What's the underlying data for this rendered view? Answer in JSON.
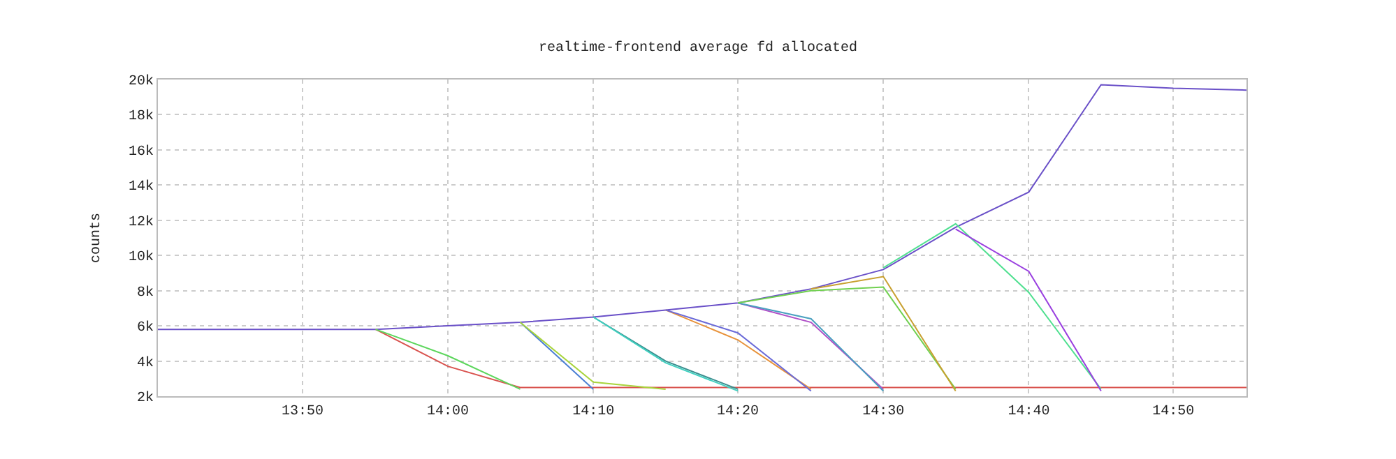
{
  "chart_data": {
    "type": "line",
    "title": "realtime-frontend average fd allocated",
    "ylabel": "counts",
    "x": [
      13.667,
      13.75,
      13.833,
      13.917,
      14,
      14.083,
      14.167,
      14.25,
      14.333,
      14.417,
      14.5,
      14.583,
      14.667,
      14.75,
      14.833,
      14.917
    ],
    "xlim": [
      13.667,
      14.917
    ],
    "xticks": [
      {
        "value": 13.833,
        "label": "13:50"
      },
      {
        "value": 14,
        "label": "14:00"
      },
      {
        "value": 14.167,
        "label": "14:10"
      },
      {
        "value": 14.333,
        "label": "14:20"
      },
      {
        "value": 14.5,
        "label": "14:30"
      },
      {
        "value": 14.667,
        "label": "14:40"
      },
      {
        "value": 14.833,
        "label": "14:50"
      }
    ],
    "ylim": [
      2000,
      20000
    ],
    "yticks": [
      {
        "value": 2000,
        "label": "2k"
      },
      {
        "value": 4000,
        "label": "4k"
      },
      {
        "value": 6000,
        "label": "6k"
      },
      {
        "value": 8000,
        "label": "8k"
      },
      {
        "value": 10000,
        "label": "10k"
      },
      {
        "value": 12000,
        "label": "12k"
      },
      {
        "value": 14000,
        "label": "14k"
      },
      {
        "value": 16000,
        "label": "16k"
      },
      {
        "value": 18000,
        "label": "18k"
      },
      {
        "value": 20000,
        "label": "20k"
      }
    ],
    "grid": true,
    "marker": "none",
    "line_style": "solid",
    "series": [
      {
        "color": "#6a50c8",
        "values": [
          5800,
          5800,
          5800,
          5800,
          6000,
          6200,
          6500,
          6900,
          7300,
          8100,
          9200,
          11600,
          13600,
          19700,
          19500,
          19400
        ]
      },
      {
        "color": "#d9534f",
        "values": [
          null,
          null,
          null,
          5800,
          3700,
          2500,
          2500,
          2500,
          2500,
          2500,
          2500,
          2500,
          2500,
          2500,
          2500,
          2500
        ]
      },
      {
        "color": "#5cd65c",
        "values": [
          null,
          null,
          null,
          5800,
          4300,
          2400,
          null,
          null,
          null,
          null,
          null,
          null,
          null,
          null,
          null,
          null
        ]
      },
      {
        "color": "#4a7fd4",
        "values": [
          null,
          null,
          null,
          null,
          null,
          6200,
          2400,
          null,
          null,
          null,
          null,
          null,
          null,
          null,
          null,
          null
        ]
      },
      {
        "color": "#a8d43c",
        "values": [
          null,
          null,
          null,
          null,
          null,
          6200,
          2800,
          2400,
          null,
          null,
          null,
          null,
          null,
          null,
          null,
          null
        ]
      },
      {
        "color": "#3a8f8f",
        "values": [
          null,
          null,
          null,
          null,
          null,
          null,
          6500,
          4000,
          2400,
          null,
          null,
          null,
          null,
          null,
          null,
          null
        ]
      },
      {
        "color": "#40d0c0",
        "values": [
          null,
          null,
          null,
          null,
          null,
          null,
          6500,
          3900,
          2300,
          null,
          null,
          null,
          null,
          null,
          null,
          null
        ]
      },
      {
        "color": "#e8923a",
        "values": [
          null,
          null,
          null,
          null,
          null,
          null,
          null,
          6900,
          5200,
          2400,
          null,
          null,
          null,
          null,
          null,
          null
        ]
      },
      {
        "color": "#6a6ad8",
        "values": [
          null,
          null,
          null,
          null,
          null,
          null,
          null,
          6900,
          5600,
          2300,
          null,
          null,
          null,
          null,
          null,
          null
        ]
      },
      {
        "color": "#b050c8",
        "values": [
          null,
          null,
          null,
          null,
          null,
          null,
          null,
          null,
          7300,
          6200,
          2400,
          null,
          null,
          null,
          null,
          null
        ]
      },
      {
        "color": "#4aa0c0",
        "values": [
          null,
          null,
          null,
          null,
          null,
          null,
          null,
          null,
          7300,
          6400,
          2300,
          null,
          null,
          null,
          null,
          null
        ]
      },
      {
        "color": "#70d050",
        "values": [
          null,
          null,
          null,
          null,
          null,
          null,
          null,
          null,
          7300,
          8000,
          8200,
          2400,
          null,
          null,
          null,
          null
        ]
      },
      {
        "color": "#c8a030",
        "values": [
          null,
          null,
          null,
          null,
          null,
          null,
          null,
          null,
          null,
          8100,
          8800,
          2300,
          null,
          null,
          null,
          null
        ]
      },
      {
        "color": "#50e090",
        "values": [
          null,
          null,
          null,
          null,
          null,
          null,
          null,
          null,
          null,
          null,
          9300,
          11800,
          7900,
          2400,
          null,
          null
        ]
      },
      {
        "color": "#9a40e0",
        "values": [
          null,
          null,
          null,
          null,
          null,
          null,
          null,
          null,
          null,
          null,
          null,
          11500,
          9100,
          2300,
          null,
          null
        ]
      }
    ]
  }
}
